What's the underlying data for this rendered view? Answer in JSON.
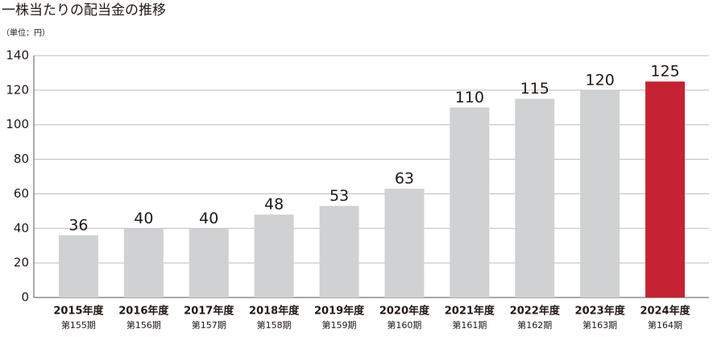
{
  "chart_data": {
    "type": "bar",
    "title": "一株当たりの配当金の推移",
    "unit_label": "（単位：円）",
    "categories": [
      "2015年度",
      "2016年度",
      "2017年度",
      "2018年度",
      "2019年度",
      "2020年度",
      "2021年度",
      "2022年度",
      "2023年度",
      "2024年度"
    ],
    "category_periods": [
      "第155期",
      "第156期",
      "第157期",
      "第158期",
      "第159期",
      "第160期",
      "第161期",
      "第162期",
      "第163期",
      "第164期"
    ],
    "values": [
      36,
      40,
      40,
      48,
      53,
      63,
      110,
      115,
      120,
      125
    ],
    "colors": [
      "#d0d1d2",
      "#d0d1d2",
      "#d0d1d2",
      "#d0d1d2",
      "#d0d1d2",
      "#d0d1d2",
      "#d0d1d2",
      "#d0d1d2",
      "#d0d1d2",
      "#c52333"
    ],
    "ylim": [
      0,
      140
    ],
    "yticks": [
      0,
      20,
      40,
      60,
      80,
      100,
      120,
      140
    ],
    "grid": true
  }
}
